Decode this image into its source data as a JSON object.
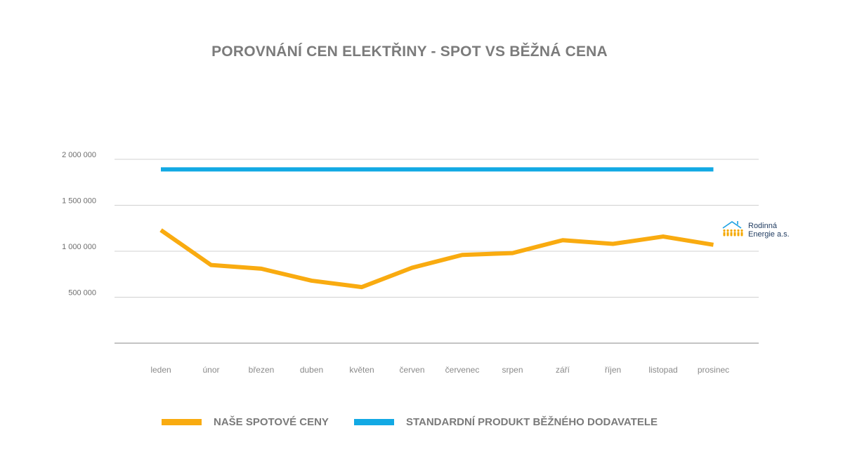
{
  "logo": {
    "line1": "Rodinná",
    "line2": "Energie a.s.",
    "colors": {
      "roof": "#1ba1e2",
      "people": "#f5a800"
    }
  },
  "chart_data": {
    "type": "line",
    "title": "POROVNÁNÍ CEN ELEKTŘINY - SPOT VS BĚŽNÁ CENA",
    "xlabel": "",
    "ylabel": "",
    "categories": [
      "leden",
      "únor",
      "březen",
      "duben",
      "květen",
      "červen",
      "červenec",
      "srpen",
      "září",
      "říjen",
      "listopad",
      "prosinec"
    ],
    "ylim": [
      0,
      2000000
    ],
    "yticks": [
      500000,
      1000000,
      1500000,
      2000000
    ],
    "ytick_labels": [
      "500 000",
      "1 000 000",
      "1 500 000",
      "2 000 000"
    ],
    "grid": true,
    "legend_position": "bottom",
    "series": [
      {
        "name": "NAŠE SPOTOVÉ CENY",
        "color": "#f9ab10",
        "values": [
          1230000,
          850000,
          810000,
          680000,
          610000,
          820000,
          960000,
          980000,
          1120000,
          1080000,
          1160000,
          1070000
        ]
      },
      {
        "name": "STANDARDNÍ PRODUKT BĚŽNÉHO DODAVATELE",
        "color": "#12a9e4",
        "values": [
          1890000,
          1890000,
          1890000,
          1890000,
          1890000,
          1890000,
          1890000,
          1890000,
          1890000,
          1890000,
          1890000,
          1890000
        ]
      }
    ]
  }
}
